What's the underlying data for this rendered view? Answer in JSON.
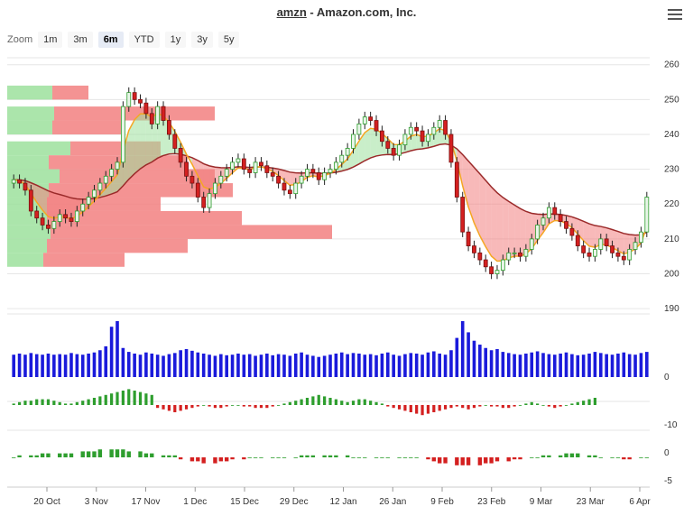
{
  "header": {
    "symbol": "amzn",
    "separator": " - ",
    "company": "Amazon.com, Inc."
  },
  "menu": {
    "icon": "hamburger-menu-icon"
  },
  "zoom": {
    "label": "Zoom",
    "options": [
      "1m",
      "3m",
      "6m",
      "YTD",
      "1y",
      "3y",
      "5y"
    ],
    "selected": "6m"
  },
  "chart_data": {
    "type": "candlestick",
    "price_axis": {
      "ticks": [
        260,
        250,
        240,
        230,
        220,
        210,
        200,
        190
      ],
      "ylim": [
        189,
        262
      ]
    },
    "volume_axis": {
      "ticks": [
        0
      ]
    },
    "oscillator1_axis": {
      "ticks": [
        -10
      ]
    },
    "oscillator2_axis": {
      "ticks": [
        0,
        -5
      ]
    },
    "x_ticks": [
      "20 Oct",
      "3 Nov",
      "17 Nov",
      "1 Dec",
      "15 Dec",
      "29 Dec",
      "12 Jan",
      "26 Jan",
      "9 Feb",
      "23 Feb",
      "9 Mar",
      "23 Mar",
      "6 Apr"
    ],
    "grid": true,
    "colors": {
      "up": "#2e9e2e",
      "down": "#d42020",
      "volume": "#1a1adb",
      "ema_fast": "#f5a623",
      "ema_slow": "#9b2a2a",
      "cloud_up": "#9ce09c",
      "cloud_down": "#f28080"
    },
    "close": [
      227,
      226,
      224,
      218,
      216,
      214,
      213,
      215,
      217,
      216,
      215,
      218,
      220,
      222,
      224,
      226,
      228,
      230,
      232,
      248,
      252,
      250,
      249,
      246,
      243,
      248,
      244,
      240,
      236,
      232,
      228,
      226,
      222,
      219,
      223,
      226,
      228,
      230,
      232,
      233,
      230,
      229,
      232,
      231,
      229,
      228,
      226,
      224,
      223,
      226,
      228,
      230,
      229,
      227,
      229,
      230,
      232,
      234,
      236,
      240,
      243,
      245,
      244,
      241,
      238,
      236,
      234,
      237,
      240,
      242,
      241,
      238,
      240,
      242,
      244,
      240,
      232,
      222,
      212,
      208,
      206,
      204,
      202,
      200,
      201,
      204,
      206,
      206,
      205,
      207,
      210,
      214,
      216,
      219,
      217,
      215,
      213,
      211,
      208,
      206,
      205,
      207,
      210,
      208,
      206,
      205,
      204,
      207,
      209,
      212,
      222
    ],
    "volume_level": [
      40,
      42,
      40,
      43,
      41,
      40,
      42,
      40,
      41,
      40,
      43,
      41,
      40,
      42,
      44,
      48,
      55,
      90,
      100,
      52,
      45,
      42,
      40,
      44,
      42,
      40,
      38,
      41,
      43,
      48,
      50,
      47,
      44,
      42,
      40,
      38,
      41,
      39,
      40,
      42,
      40,
      41,
      38,
      40,
      42,
      39,
      41,
      40,
      38,
      42,
      44,
      40,
      38,
      36,
      38,
      40,
      42,
      44,
      41,
      43,
      42,
      40,
      41,
      39,
      42,
      44,
      40,
      38,
      41,
      43,
      42,
      40,
      44,
      46,
      42,
      40,
      48,
      70,
      100,
      80,
      65,
      58,
      52,
      48,
      50,
      45,
      43,
      41,
      40,
      42,
      44,
      46,
      43,
      41,
      40,
      42,
      44,
      41,
      39,
      40,
      42,
      45,
      43,
      41,
      40,
      42,
      44,
      41,
      40,
      43,
      45
    ],
    "oscillator1": [
      1,
      2,
      3,
      3,
      4,
      4,
      4,
      3,
      2,
      1,
      1,
      2,
      3,
      4,
      5,
      6,
      7,
      8,
      9,
      10,
      11,
      10,
      9,
      8,
      7,
      -2,
      -3,
      -4,
      -5,
      -4,
      -3,
      -2,
      -1,
      0,
      -1,
      -2,
      -2,
      -1,
      0,
      0,
      -1,
      -1,
      -2,
      -2,
      -2,
      -1,
      0,
      1,
      2,
      3,
      4,
      5,
      6,
      7,
      6,
      5,
      4,
      3,
      2,
      3,
      4,
      4,
      3,
      2,
      1,
      -1,
      -2,
      -3,
      -4,
      -5,
      -6,
      -7,
      -6,
      -5,
      -4,
      -3,
      -2,
      -1,
      -2,
      -3,
      -2,
      -1,
      0,
      -1,
      -1,
      -2,
      -2,
      -1,
      0,
      1,
      2,
      1,
      0,
      -1,
      -2,
      -1,
      0,
      1,
      2,
      3,
      4,
      5
    ],
    "oscillator2": [
      0,
      1,
      1,
      1,
      2,
      2,
      2,
      2,
      2,
      3,
      3,
      3,
      4,
      4,
      4,
      4,
      3,
      3,
      2,
      2,
      1,
      1,
      1,
      -1,
      -2,
      -2,
      -3,
      -3,
      -2,
      -2,
      -1,
      -1,
      0,
      0,
      0,
      0,
      0,
      0,
      0,
      1,
      1,
      1,
      1,
      1,
      1,
      1,
      0,
      0,
      0,
      0,
      0,
      0,
      0,
      0,
      0,
      0,
      -1,
      -2,
      -3,
      -3,
      -4,
      -4,
      -4,
      -4,
      -3,
      -3,
      -2,
      -2,
      -1,
      -1,
      0,
      0,
      1,
      1,
      1,
      2,
      2,
      2,
      1,
      1,
      0,
      0,
      0,
      -1,
      -1,
      0,
      0
    ]
  }
}
